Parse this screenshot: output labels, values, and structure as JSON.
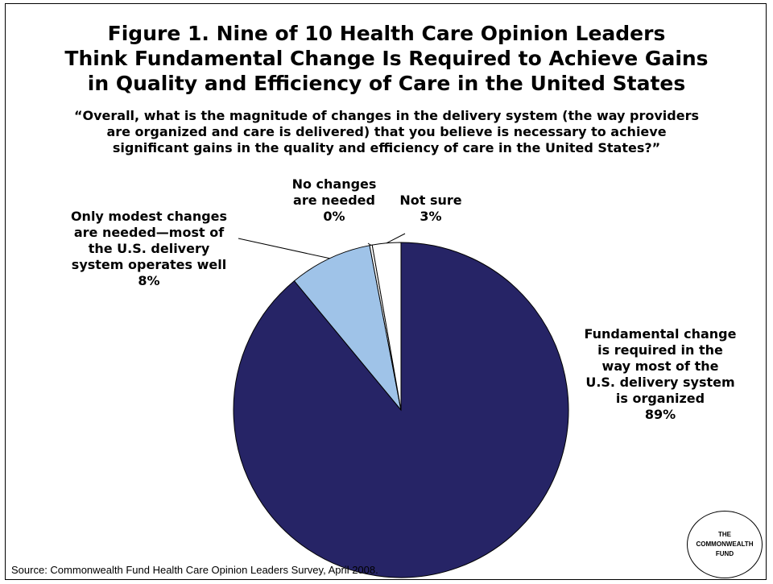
{
  "chart_data": {
    "type": "pie",
    "title": "Figure 1. Nine of 10 Health Care Opinion Leaders\nThink Fundamental Change Is Required to Achieve Gains\nin Quality and Efficiency of Care in the United States",
    "subtitle": "“Overall, what is the magnitude of changes in the delivery system (the way providers\nare organized and care is delivered) that you believe is necessary to achieve\nsignificant gains in the quality and efficiency of care in the United States?”",
    "slices": [
      {
        "label": "Fundamental change\nis required in the\nway most of the\nU.S. delivery system\nis organized\n89%",
        "value": 89,
        "color": "#262466"
      },
      {
        "label": "Only modest changes\nare needed—most of\nthe U.S. delivery\nsystem operates well\n8%",
        "value": 8,
        "color": "#9fc3e8"
      },
      {
        "label": "No changes\nare needed\n0%",
        "value": 0.25,
        "color": "#ffffff"
      },
      {
        "label": "Not sure\n3%",
        "value": 2.75,
        "color": "#ffffff"
      }
    ],
    "source": "Source: Commonwealth Fund Health Care Opinion Leaders Survey, April 2008."
  },
  "logo_text": "THE\nCOMMONWEALTH\nFUND"
}
